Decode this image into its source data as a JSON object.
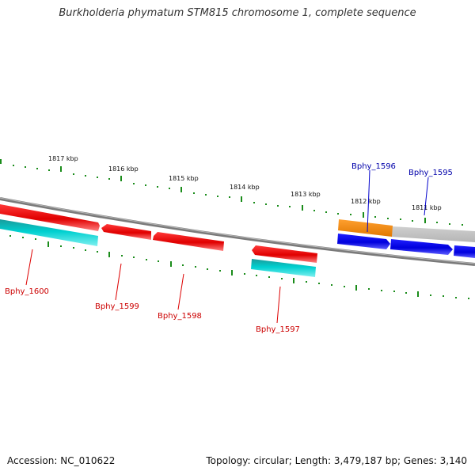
{
  "title": "Burkholderia phymatum STM815 chromosome 1, complete sequence",
  "colors": {
    "backbone": "#8a8a8a",
    "tick": "#1a8c1a",
    "forward_gene": "#0000ee",
    "reverse_gene": "#ee0000",
    "orange_gene": "#ff8c00",
    "cyan_feature": "#00c8c8",
    "forward_label": "#0000aa",
    "reverse_label": "#cc0000"
  },
  "scale_labels": [
    "1817 kbp",
    "1816 kbp",
    "1815 kbp",
    "1814 kbp",
    "1813 kbp",
    "1812 kbp",
    "1811 kbp"
  ],
  "gene_labels": {
    "forward": [
      "Bphy_1596",
      "Bphy_1595"
    ],
    "reverse": [
      "Bphy_1600",
      "Bphy_1599",
      "Bphy_1598",
      "Bphy_1597"
    ]
  },
  "footer": {
    "accession": "Accession: NC_010622",
    "summary": "Topology: circular; Length: 3,479,187 bp; Genes: 3,140"
  }
}
